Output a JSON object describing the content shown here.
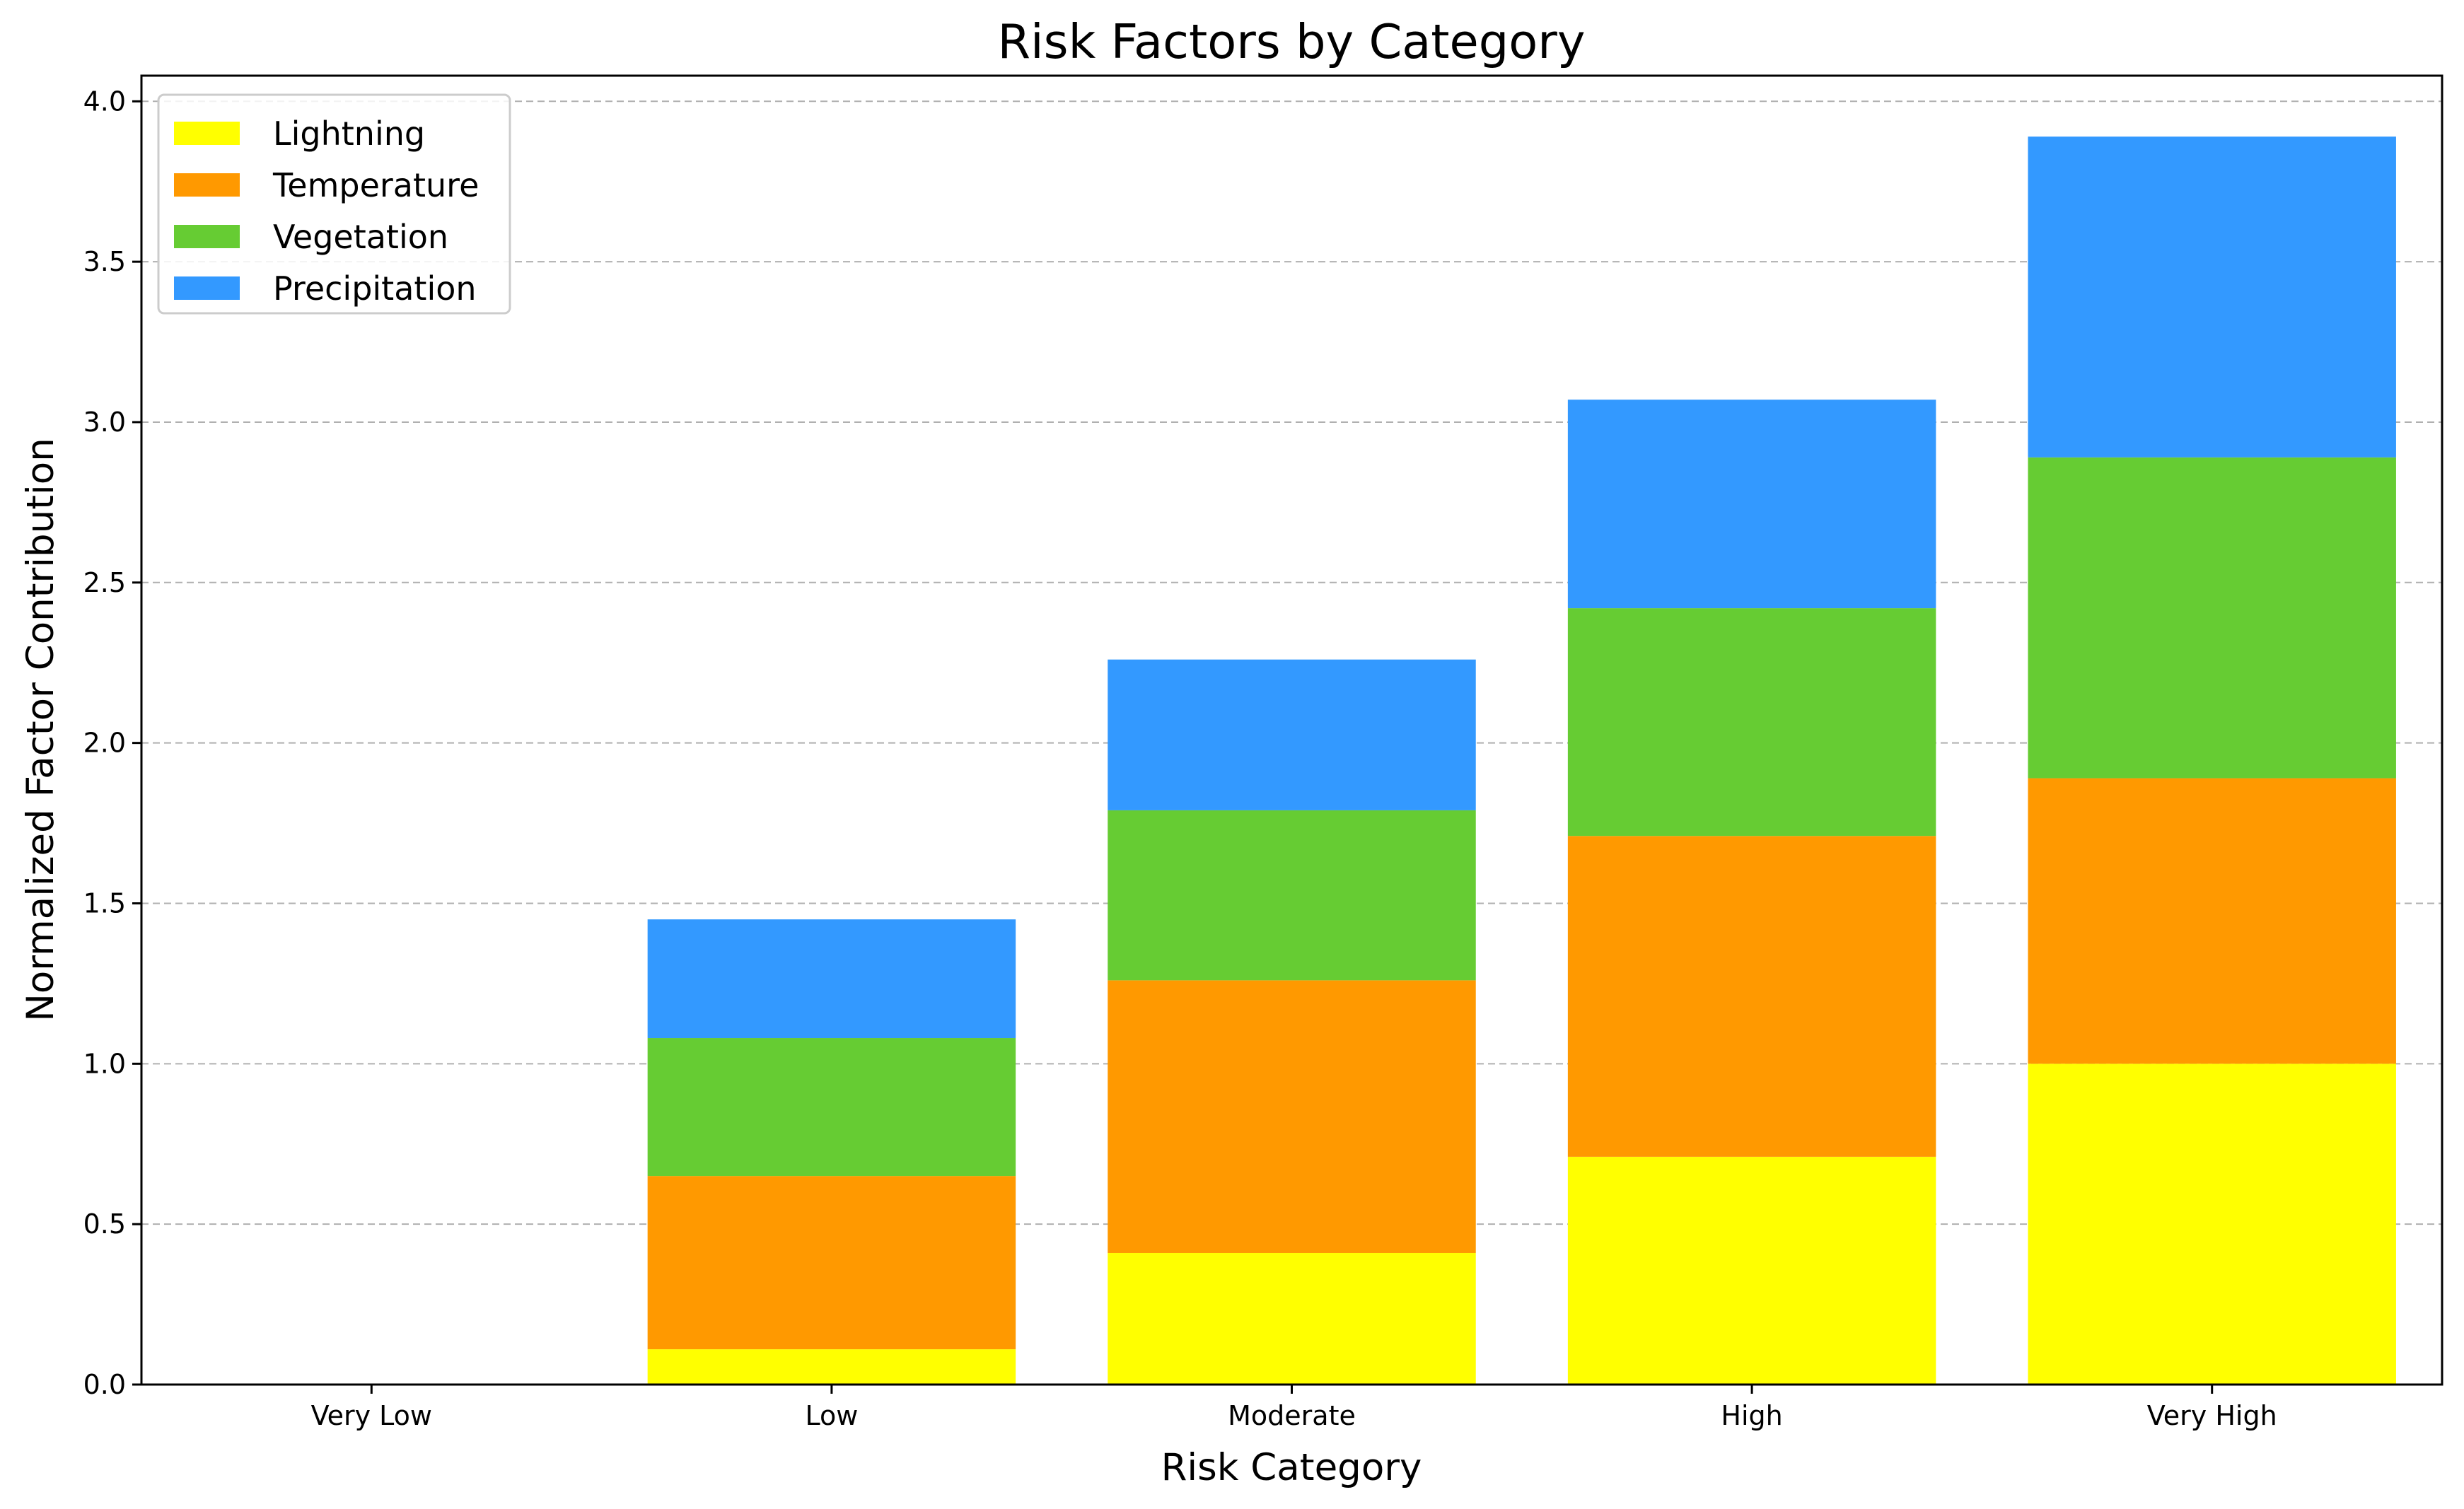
{
  "chart_data": {
    "type": "bar",
    "stacked": true,
    "title": "Risk Factors by Category",
    "xlabel": "Risk Category",
    "ylabel": "Normalized Factor Contribution",
    "categories": [
      "Very Low",
      "Low",
      "Moderate",
      "High",
      "Very High"
    ],
    "ylim": [
      0,
      4.08
    ],
    "yticks": [
      0.0,
      0.5,
      1.0,
      1.5,
      2.0,
      2.5,
      3.0,
      3.5,
      4.0
    ],
    "ytick_labels": [
      "0.0",
      "0.5",
      "1.0",
      "1.5",
      "2.0",
      "2.5",
      "3.0",
      "3.5",
      "4.0"
    ],
    "grid": {
      "y": true,
      "style": "dashed",
      "color": "#b0b0b0"
    },
    "legend": {
      "position": "top-left"
    },
    "series": [
      {
        "name": "Lightning",
        "color": "#ffff00",
        "values": [
          0,
          0.11,
          0.41,
          0.71,
          1.0
        ]
      },
      {
        "name": "Temperature",
        "color": "#ff9900",
        "values": [
          0,
          0.54,
          0.85,
          1.0,
          0.89
        ]
      },
      {
        "name": "Vegetation",
        "color": "#66cc33",
        "values": [
          0,
          0.43,
          0.53,
          0.71,
          1.0
        ]
      },
      {
        "name": "Precipitation",
        "color": "#3399ff",
        "values": [
          0,
          0.37,
          0.47,
          0.65,
          1.0
        ]
      }
    ]
  }
}
